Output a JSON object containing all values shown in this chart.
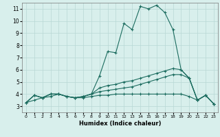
{
  "title": "",
  "xlabel": "Humidex (Indice chaleur)",
  "ylabel": "",
  "bg_color": "#d8efec",
  "grid_color": "#b8d8d4",
  "line_color": "#1a6b5e",
  "xlim": [
    -0.5,
    23.5
  ],
  "ylim": [
    2.5,
    11.5
  ],
  "xticks": [
    0,
    1,
    2,
    3,
    4,
    5,
    6,
    7,
    8,
    9,
    10,
    11,
    12,
    13,
    14,
    15,
    16,
    17,
    18,
    19,
    20,
    21,
    22,
    23
  ],
  "yticks": [
    3,
    4,
    5,
    6,
    7,
    8,
    9,
    10,
    11
  ],
  "lines": [
    [
      3.3,
      3.9,
      3.7,
      4.0,
      4.0,
      3.8,
      3.7,
      3.8,
      4.0,
      5.5,
      7.5,
      7.4,
      9.8,
      9.3,
      11.2,
      11.0,
      11.3,
      10.7,
      9.3,
      6.0,
      5.3,
      3.5,
      3.9,
      3.2
    ],
    [
      3.3,
      3.9,
      3.7,
      4.0,
      4.0,
      3.8,
      3.7,
      3.8,
      4.0,
      4.5,
      4.7,
      4.8,
      5.0,
      5.1,
      5.3,
      5.5,
      5.7,
      5.9,
      6.1,
      6.0,
      5.3,
      3.5,
      3.9,
      3.2
    ],
    [
      3.3,
      3.9,
      3.7,
      4.0,
      4.0,
      3.8,
      3.7,
      3.8,
      4.0,
      4.2,
      4.3,
      4.4,
      4.5,
      4.6,
      4.8,
      5.0,
      5.2,
      5.4,
      5.6,
      5.6,
      5.3,
      3.5,
      3.9,
      3.2
    ],
    [
      3.3,
      3.5,
      3.7,
      3.8,
      4.0,
      3.8,
      3.7,
      3.7,
      3.8,
      3.9,
      3.9,
      4.0,
      4.0,
      4.0,
      4.0,
      4.0,
      4.0,
      4.0,
      4.0,
      4.0,
      3.8,
      3.5,
      3.9,
      3.2
    ]
  ]
}
